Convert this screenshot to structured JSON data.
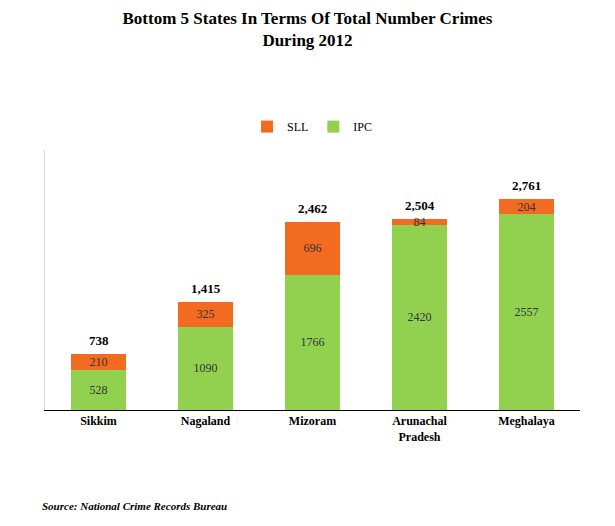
{
  "chart_data": {
    "type": "bar",
    "title": "Bottom 5 States In Terms Of Total Number Crimes\nDuring 2012",
    "source": "Source: National Crime Records Bureau",
    "categories": [
      "Sikkim",
      "Nagaland",
      "Mizoram",
      "Arunachal Pradesh",
      "Meghalaya"
    ],
    "series": [
      {
        "name": "IPC",
        "color": "#92d050",
        "values": [
          528,
          1090,
          1766,
          2420,
          2557
        ]
      },
      {
        "name": "SLL",
        "color": "#f36a21",
        "values": [
          210,
          325,
          696,
          84,
          204
        ]
      }
    ],
    "totals": [
      738,
      1415,
      2462,
      2504,
      2761
    ],
    "total_labels": [
      "738",
      "1,415",
      "2,462",
      "2,504",
      "2,761"
    ],
    "ylim": [
      0,
      3400
    ],
    "stacked": true,
    "data_labels": true,
    "legend": "top",
    "grid": false,
    "tick_labels": "x"
  }
}
